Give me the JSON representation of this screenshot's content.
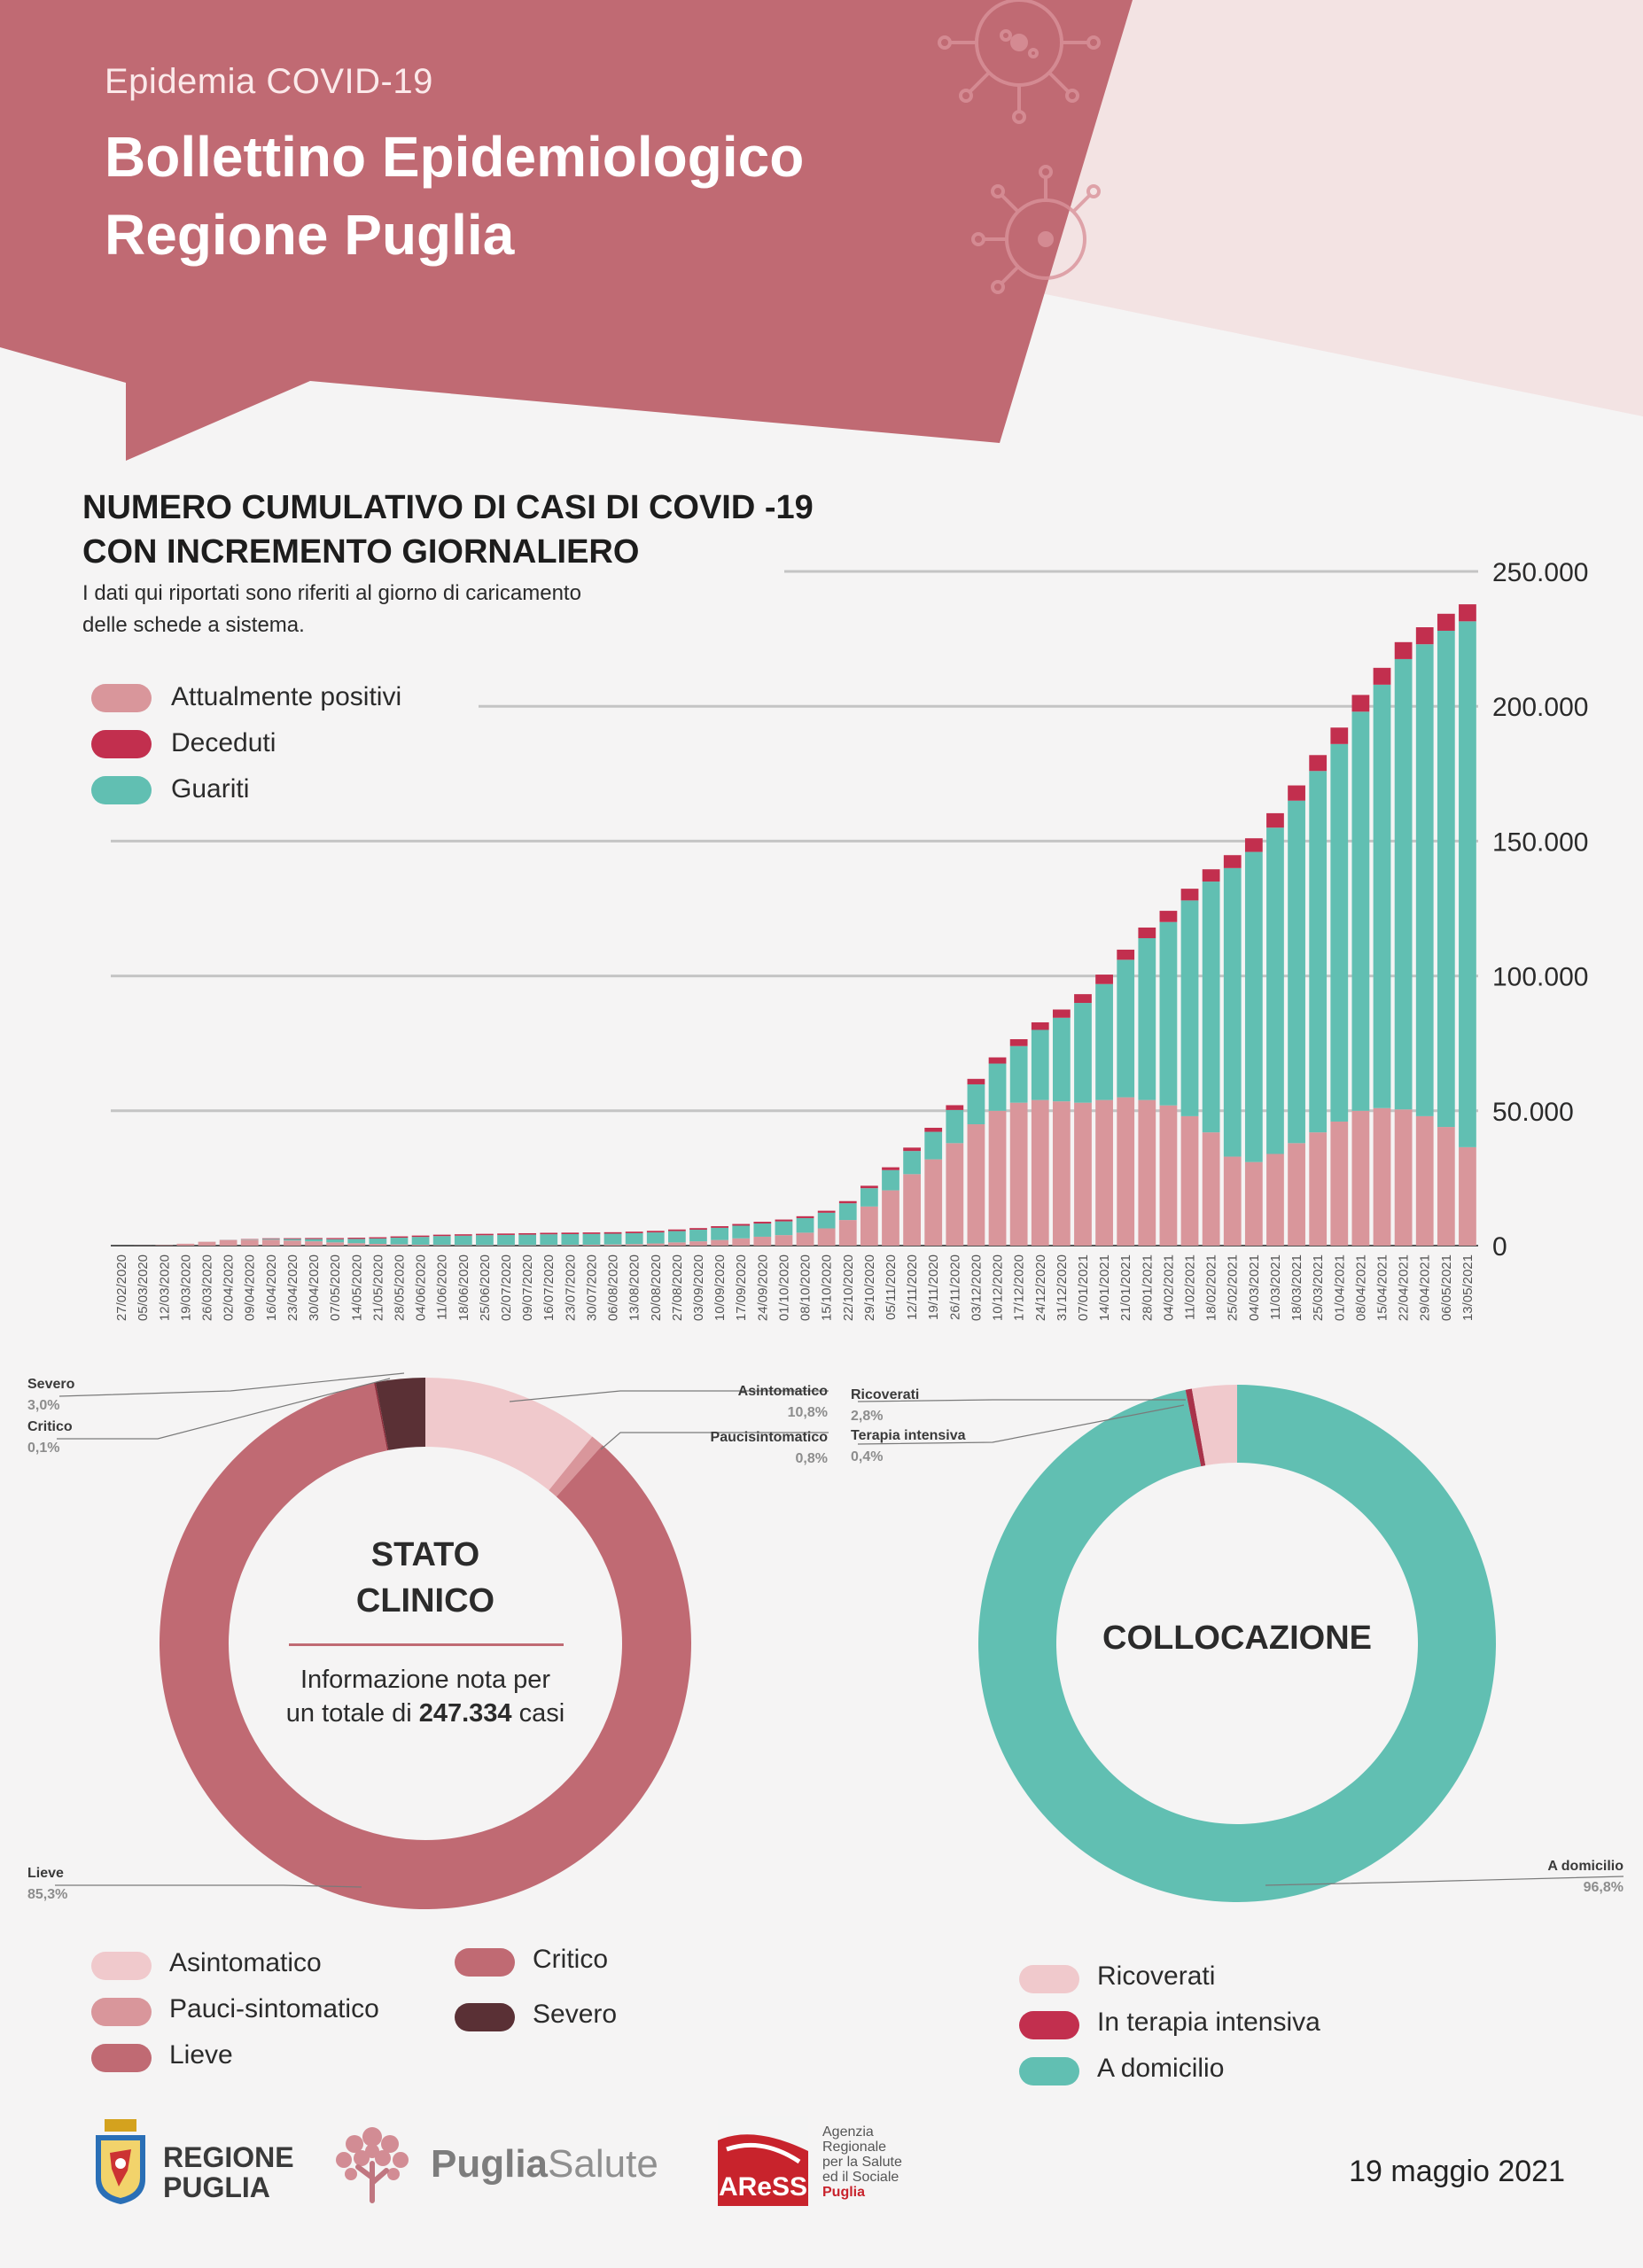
{
  "header": {
    "supertitle": "Epidemia COVID-19",
    "title_line1": "Bollettino Epidemiologico",
    "title_line2": "Regione Puglia"
  },
  "cumulative": {
    "title_line1": "NUMERO CUMULATIVO DI CASI DI COVID -19",
    "title_line2": "CON INCREMENTO GIORNALIERO",
    "note_line1": "I dati qui riportati sono riferiti al giorno di caricamento",
    "note_line2": "delle schede a sistema.",
    "legend": [
      {
        "label": "Attualmente positivi",
        "color": "#d9969b"
      },
      {
        "label": "Deceduti",
        "color": "#c22f4e"
      },
      {
        "label": "Guariti",
        "color": "#61bfb2"
      }
    ]
  },
  "chart_data": [
    {
      "type": "bar",
      "stacked": true,
      "title": "NUMERO CUMULATIVO DI CASI DI COVID -19 CON INCREMENTO GIORNALIERO",
      "ylim": [
        0,
        250000
      ],
      "yticks": [
        "0",
        "50.000",
        "100.000",
        "150.000",
        "200.000",
        "250.000"
      ],
      "ytick_values": [
        0,
        50000,
        100000,
        150000,
        200000,
        250000
      ],
      "grid": true,
      "categories": [
        "27/02/2020",
        "05/03/2020",
        "12/03/2020",
        "19/03/2020",
        "26/03/2020",
        "02/04/2020",
        "09/04/2020",
        "16/04/2020",
        "23/04/2020",
        "30/04/2020",
        "07/05/2020",
        "14/05/2020",
        "21/05/2020",
        "28/05/2020",
        "04/06/2020",
        "11/06/2020",
        "18/06/2020",
        "25/06/2020",
        "02/07/2020",
        "09/07/2020",
        "16/07/2020",
        "23/07/2020",
        "30/07/2020",
        "06/08/2020",
        "13/08/2020",
        "20/08/2020",
        "27/08/2020",
        "03/09/2020",
        "10/09/2020",
        "17/09/2020",
        "24/09/2020",
        "01/10/2020",
        "08/10/2020",
        "15/10/2020",
        "22/10/2020",
        "29/10/2020",
        "05/11/2020",
        "12/11/2020",
        "19/11/2020",
        "26/11/2020",
        "03/12/2020",
        "10/12/2020",
        "17/12/2020",
        "24/12/2020",
        "31/12/2020",
        "07/01/2021",
        "14/01/2021",
        "21/01/2021",
        "28/01/2021",
        "04/02/2021",
        "11/02/2021",
        "18/02/2021",
        "25/02/2021",
        "04/03/2021",
        "11/03/2021",
        "18/03/2021",
        "25/03/2021",
        "01/04/2021",
        "08/04/2021",
        "15/04/2021",
        "22/04/2021",
        "29/04/2021",
        "06/05/2021",
        "13/05/2021"
      ],
      "series": [
        {
          "name": "Guariti",
          "color": "#61bfb2",
          "values": [
            0,
            0,
            0,
            0,
            10,
            60,
            150,
            300,
            550,
            850,
            1200,
            1600,
            2000,
            2500,
            2900,
            3300,
            3500,
            3700,
            3800,
            3900,
            4000,
            4000,
            4000,
            4000,
            4050,
            4100,
            4200,
            4300,
            4500,
            4700,
            4900,
            5100,
            5400,
            5800,
            6200,
            6800,
            7500,
            8600,
            10200,
            12300,
            14800,
            17500,
            21000,
            26000,
            31000,
            37000,
            43000,
            51000,
            60000,
            68000,
            80000,
            93000,
            107000,
            115000,
            121000,
            127000,
            134000,
            140000,
            148000,
            157000,
            167000,
            175000,
            184000,
            195000
          ]
        },
        {
          "name": "Deceduti",
          "color": "#c22f4e",
          "values": [
            0,
            0,
            0,
            0,
            20,
            60,
            120,
            220,
            300,
            370,
            410,
            440,
            460,
            480,
            500,
            510,
            520,
            520,
            530,
            540,
            550,
            550,
            560,
            560,
            570,
            580,
            590,
            600,
            610,
            630,
            650,
            670,
            700,
            740,
            810,
            900,
            1050,
            1250,
            1500,
            1780,
            2030,
            2300,
            2550,
            2800,
            3050,
            3250,
            3500,
            3750,
            3950,
            4150,
            4350,
            4550,
            4800,
            5050,
            5350,
            5650,
            5900,
            6100,
            6200,
            6250,
            6280,
            6300,
            6300,
            6310
          ]
        },
        {
          "name": "Attualmente positivi",
          "color": "#d9969b",
          "values": [
            5,
            30,
            150,
            700,
            1400,
            2000,
            2200,
            2200,
            1900,
            1600,
            1200,
            900,
            650,
            450,
            330,
            250,
            190,
            160,
            160,
            170,
            210,
            270,
            330,
            420,
            560,
            800,
            1200,
            1600,
            2100,
            2700,
            3300,
            3900,
            4800,
            6400,
            9500,
            14500,
            20500,
            26500,
            32000,
            38000,
            45000,
            50000,
            53000,
            54000,
            53500,
            53000,
            54000,
            55000,
            54000,
            52000,
            48000,
            42000,
            33000,
            31000,
            34000,
            38000,
            42000,
            46000,
            50000,
            51000,
            50500,
            48000,
            44000,
            36500
          ]
        }
      ],
      "legend_position": "top-left"
    },
    {
      "type": "pie",
      "subtype": "donut",
      "title": "STATO CLINICO",
      "categories": [
        "Asintomatico",
        "Paucisintomatico",
        "Lieve",
        "Critico",
        "Severo"
      ],
      "values": [
        10.8,
        0.8,
        85.3,
        0.1,
        3.0
      ]
    },
    {
      "type": "pie",
      "subtype": "donut",
      "title": "COLLOCAZIONE",
      "categories": [
        "Ricoverati",
        "Terapia intensiva",
        "A domicilio"
      ],
      "values": [
        2.8,
        0.4,
        96.8
      ]
    }
  ],
  "clinical": {
    "center_title_line1": "STATO",
    "center_title_line2": "CLINICO",
    "center_text_line1": "Informazione nota per",
    "center_text_pre": "un totale di",
    "total_cases": "247.334",
    "center_text_post": "casi",
    "labels": [
      {
        "name": "Severo",
        "value": "3,0%"
      },
      {
        "name": "Critico",
        "value": "0,1%"
      },
      {
        "name": "Asintomatico",
        "value": "10,8%"
      },
      {
        "name": "Paucisintomatico",
        "value": "0,8%"
      },
      {
        "name": "Lieve",
        "value": "85,3%"
      }
    ],
    "legend": [
      {
        "label": "Asintomatico",
        "color": "#f0c9cc"
      },
      {
        "label": "Pauci-sintomatico",
        "color": "#d9969b"
      },
      {
        "label": "Lieve",
        "color": "#c06a73"
      },
      {
        "label": "Critico",
        "color": "#c06a73"
      },
      {
        "label": "Severo",
        "color": "#5a3035"
      }
    ],
    "colors": {
      "asintomatico": "#f0c9cc",
      "pauci": "#d9969b",
      "lieve": "#c06a73",
      "critico": "#8e2e3c",
      "severo": "#5a3035"
    }
  },
  "placement": {
    "center_title": "COLLOCAZIONE",
    "labels": [
      {
        "name": "Ricoverati",
        "value": "2,8%"
      },
      {
        "name": "Terapia intensiva",
        "value": "0,4%"
      },
      {
        "name": "A domicilio",
        "value": "96,8%"
      }
    ],
    "legend": [
      {
        "label": "Ricoverati",
        "color": "#f0c9cc"
      },
      {
        "label": "In terapia intensiva",
        "color": "#c22f4e"
      },
      {
        "label": "A domicilio",
        "color": "#61bfb2"
      }
    ],
    "colors": {
      "ricoverati": "#f0c9cc",
      "ti": "#a8334a",
      "domicilio": "#61bfb2"
    }
  },
  "footer": {
    "regione_line1": "REGIONE",
    "regione_line2": "PUGLIA",
    "puglia_bold": "Puglia",
    "puglia_light": "Salute",
    "aress_logo": "AReSS",
    "aress_line1": "Agenzia",
    "aress_line2": "Regionale",
    "aress_line3": "per la Salute",
    "aress_line4": "ed il Sociale",
    "aress_line5": "Puglia",
    "date": "19 maggio 2021"
  },
  "theme": {
    "header": "#c06a73",
    "header_light": "#f3e3e3",
    "grid": "#bdbdbd"
  }
}
